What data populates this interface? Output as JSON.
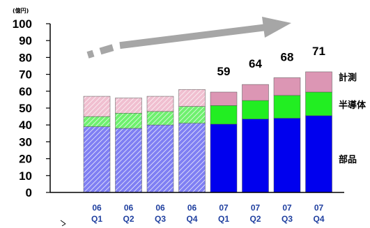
{
  "chart_data": {
    "type": "bar",
    "stacked": true,
    "unit_label": "(億円)",
    "categories": [
      {
        "year": "06",
        "quarter": "Q1"
      },
      {
        "year": "06",
        "quarter": "Q2"
      },
      {
        "year": "06",
        "quarter": "Q3"
      },
      {
        "year": "06",
        "quarter": "Q4"
      },
      {
        "year": "07",
        "quarter": "Q1"
      },
      {
        "year": "07",
        "quarter": "Q2"
      },
      {
        "year": "07",
        "quarter": "Q3"
      },
      {
        "year": "07",
        "quarter": "Q4"
      }
    ],
    "series": [
      {
        "name": "部品",
        "values": [
          39,
          38,
          40,
          41,
          40.5,
          43.5,
          44,
          45.5
        ],
        "color": "#0000ee",
        "hatched_color": "#8a8af5"
      },
      {
        "name": "半導体",
        "values": [
          6,
          9,
          8,
          10,
          11,
          11,
          13.5,
          14
        ],
        "color": "#22ee22",
        "hatched_color": "#88f088"
      },
      {
        "name": "計測",
        "values": [
          12,
          9,
          9,
          10,
          8,
          9.5,
          10.5,
          12
        ],
        "color": "#dc96b4",
        "hatched_color": "#f4cad8"
      }
    ],
    "hatched_categories": [
      0,
      1,
      2,
      3
    ],
    "totals": [
      "",
      "",
      "",
      "",
      "59",
      "64",
      "68",
      "71"
    ],
    "ylim": [
      0,
      100
    ],
    "yticks": [
      0,
      10,
      20,
      30,
      40,
      50,
      60,
      70,
      80,
      90,
      100
    ],
    "grid": false,
    "legend": "labels at right of last bar",
    "annotation": "trend-arrow"
  }
}
